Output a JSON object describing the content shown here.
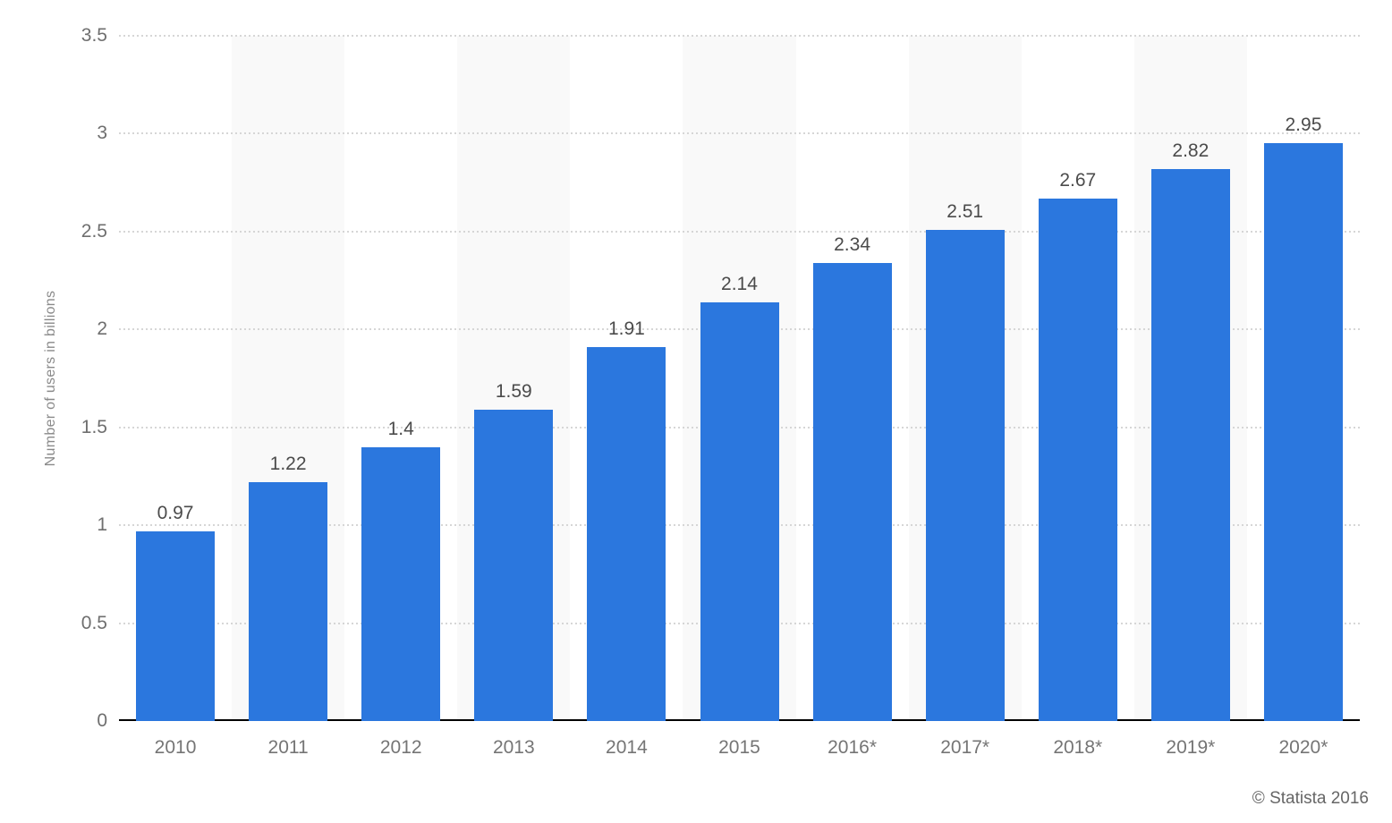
{
  "chart_data": {
    "type": "bar",
    "title": "",
    "xlabel": "",
    "ylabel": "Number of users in billions",
    "categories": [
      "2010",
      "2011",
      "2012",
      "2013",
      "2014",
      "2015",
      "2016*",
      "2017*",
      "2018*",
      "2019*",
      "2020*"
    ],
    "values": [
      0.97,
      1.22,
      1.4,
      1.59,
      1.91,
      2.14,
      2.34,
      2.51,
      2.67,
      2.82,
      2.95
    ],
    "value_labels": [
      "0.97",
      "1.22",
      "1.4",
      "1.59",
      "1.91",
      "2.14",
      "2.34",
      "2.51",
      "2.67",
      "2.82",
      "2.95"
    ],
    "ylim": [
      0,
      3.5
    ],
    "yticks": [
      0,
      0.5,
      1,
      1.5,
      2,
      2.5,
      3,
      3.5
    ],
    "ytick_labels": [
      "0",
      "0.5",
      "1",
      "1.5",
      "2",
      "2.5",
      "3",
      "3.5"
    ],
    "grid": "horizontal dotted",
    "legend": false,
    "plot_bands": "alternating light bands behind odd columns",
    "colors": {
      "bar": "#2b77de",
      "band": "#f9f9f9",
      "gridline": "#d6d6d6",
      "axis_line": "#000000",
      "tick_label": "#6f6f6f",
      "value_label": "#4b4b4b"
    }
  },
  "footer": {
    "credit": "© Statista 2016"
  }
}
